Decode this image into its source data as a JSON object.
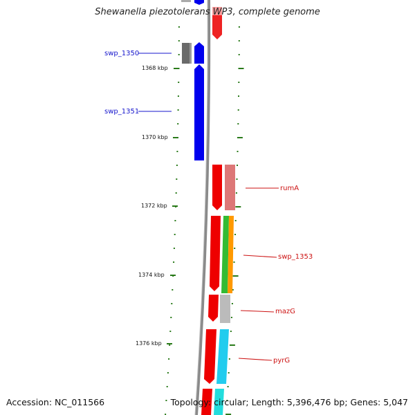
{
  "title": "Shewanella piezotolerans WP3, complete genome",
  "footer": {
    "accession": "Accession: NC_011566",
    "summary": "Topology: circular; Length: 5,396,476 bp; Genes: 5,047"
  },
  "scale_ticks": [
    {
      "label": "1368 kbp"
    },
    {
      "label": "1370 kbp"
    },
    {
      "label": "1372 kbp"
    },
    {
      "label": "1374 kbp"
    },
    {
      "label": "1376 kbp"
    }
  ],
  "gene_labels": [
    {
      "name": "swp_1350",
      "color": "#1515cc"
    },
    {
      "name": "swp_1351",
      "color": "#1515cc"
    },
    {
      "name": "rumA",
      "color": "#cc1111"
    },
    {
      "name": "swp_1353",
      "color": "#cc1111"
    },
    {
      "name": "mazG",
      "color": "#cc1111"
    },
    {
      "name": "pyrG",
      "color": "#cc1111"
    }
  ],
  "colors": {
    "backbone": "#888888",
    "forward_strand": "#0000ee",
    "reverse_strand": "#ee0000",
    "tick": "#2a7a1a"
  }
}
